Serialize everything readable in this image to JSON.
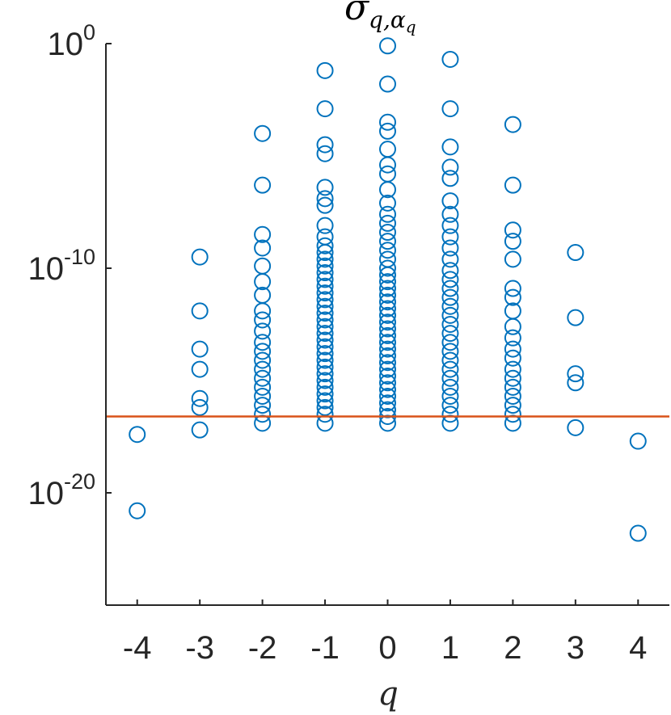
{
  "chart_data": {
    "type": "scatter",
    "title": {
      "base": "σ",
      "sub1": "q,α",
      "sub2": "q"
    },
    "xlabel": "q",
    "ylabel": "",
    "xlim": [
      -4.5,
      4.5
    ],
    "ylim": [
      -25,
      0
    ],
    "yscale": "log",
    "grid": false,
    "x_ticks": [
      "-4",
      "-3",
      "-2",
      "-1",
      "0",
      "1",
      "2",
      "3",
      "4"
    ],
    "y_ticks": [
      {
        "base": "10",
        "exp": "0",
        "value": 0
      },
      {
        "base": "10",
        "exp": "-10",
        "value": -10
      },
      {
        "base": "10",
        "exp": "-20",
        "value": -20
      }
    ],
    "threshold_log10": -16.6,
    "colors": {
      "markers": "#0072bd",
      "threshold": "#d95319",
      "axes": "#262626"
    },
    "series": [
      {
        "x": -4,
        "log10_y": [
          -17.4,
          -20.8
        ]
      },
      {
        "x": -3,
        "log10_y": [
          -9.5,
          -11.9,
          -13.6,
          -14.5,
          -15.8,
          -16.2,
          -17.2
        ]
      },
      {
        "x": -2,
        "log10_y": [
          -4.0,
          -6.3,
          -8.5,
          -9.1,
          -9.9,
          -10.6,
          -11.2,
          -11.9,
          -12.3,
          -12.8,
          -13.3,
          -13.7,
          -14.1,
          -14.5,
          -14.9,
          -15.3,
          -15.7,
          -16.1,
          -16.5,
          -16.9
        ]
      },
      {
        "x": -1,
        "log10_y": [
          -1.2,
          -2.9,
          -4.5,
          -4.9,
          -6.4,
          -6.9,
          -7.2,
          -8.1,
          -8.6,
          -9.0,
          -9.3,
          -9.6,
          -9.9,
          -10.2,
          -10.5,
          -10.8,
          -11.1,
          -11.4,
          -11.7,
          -12.0,
          -12.3,
          -12.6,
          -12.9,
          -13.2,
          -13.5,
          -13.8,
          -14.1,
          -14.4,
          -14.7,
          -15.0,
          -15.3,
          -15.6,
          -15.9,
          -16.2,
          -16.5,
          -16.9
        ]
      },
      {
        "x": 0,
        "log10_y": [
          -0.1,
          -1.8,
          -3.5,
          -3.9,
          -4.7,
          -5.4,
          -5.8,
          -6.5,
          -7.1,
          -7.6,
          -8.0,
          -8.4,
          -8.8,
          -9.2,
          -9.6,
          -10.0,
          -10.3,
          -10.6,
          -10.9,
          -11.2,
          -11.5,
          -11.8,
          -12.1,
          -12.4,
          -12.7,
          -13.0,
          -13.3,
          -13.6,
          -13.9,
          -14.2,
          -14.5,
          -14.8,
          -15.1,
          -15.4,
          -15.7,
          -16.0,
          -16.3,
          -16.6,
          -16.9
        ]
      },
      {
        "x": 1,
        "log10_y": [
          -0.7,
          -2.9,
          -4.6,
          -5.5,
          -6.0,
          -7.0,
          -7.6,
          -8.1,
          -8.6,
          -9.1,
          -9.6,
          -10.1,
          -10.5,
          -10.9,
          -11.3,
          -11.7,
          -12.1,
          -12.5,
          -12.9,
          -13.3,
          -13.7,
          -14.1,
          -14.5,
          -14.9,
          -15.3,
          -15.7,
          -16.1,
          -16.5,
          -16.9
        ]
      },
      {
        "x": 2,
        "log10_y": [
          -3.6,
          -6.3,
          -8.3,
          -8.8,
          -9.6,
          -10.9,
          -11.3,
          -11.9,
          -12.6,
          -13.1,
          -13.6,
          -14.0,
          -14.5,
          -14.9,
          -15.3,
          -15.7,
          -16.1,
          -16.5,
          -16.9
        ]
      },
      {
        "x": 3,
        "log10_y": [
          -9.3,
          -12.2,
          -14.7,
          -15.1,
          -17.1
        ]
      },
      {
        "x": 4,
        "log10_y": [
          -17.7,
          -21.8
        ]
      }
    ]
  }
}
